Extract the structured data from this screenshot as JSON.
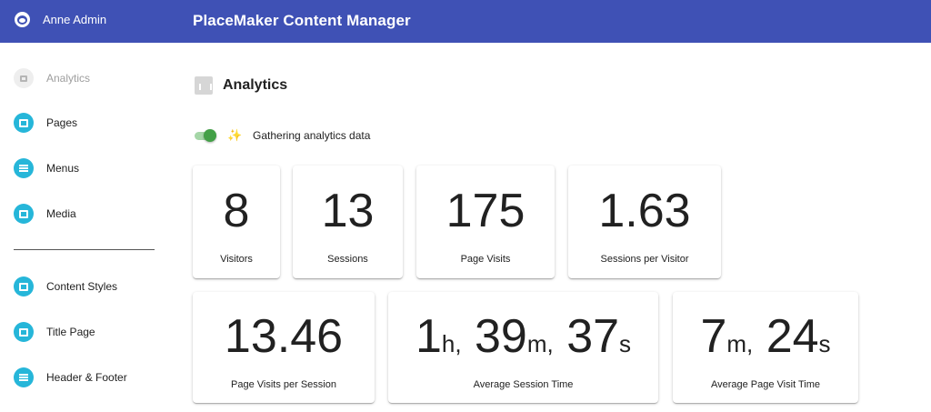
{
  "header": {
    "user_name": "Anne Admin",
    "app_title": "PlaceMaker Content Manager",
    "bar_color": "#3f51b5"
  },
  "sidebar": {
    "items": [
      {
        "label": "Analytics",
        "icon": "bar-chart-icon",
        "disabled": true
      },
      {
        "label": "Pages",
        "icon": "pages-icon"
      },
      {
        "label": "Menus",
        "icon": "menu-icon"
      },
      {
        "label": "Media",
        "icon": "media-icon"
      },
      {
        "label": "Content Styles",
        "icon": "palette-icon"
      },
      {
        "label": "Title Page",
        "icon": "phone-icon"
      },
      {
        "label": "Header & Footer",
        "icon": "header-footer-icon"
      }
    ],
    "accent_color": "#26b6d9"
  },
  "main": {
    "title": "Analytics",
    "toggle": {
      "label": "Gathering analytics data",
      "on": true
    }
  },
  "stats": {
    "visitors": {
      "value": "8",
      "label": "Visitors"
    },
    "sessions": {
      "value": "13",
      "label": "Sessions"
    },
    "page_visits": {
      "value": "175",
      "label": "Page Visits"
    },
    "sessions_per_visitor": {
      "value": "1.63",
      "label": "Sessions per Visitor"
    },
    "page_visits_per_session": {
      "value": "13.46",
      "label": "Page Visits per Session"
    },
    "avg_session_time": {
      "hours": "1",
      "hours_unit": "h,",
      "minutes": "39",
      "minutes_unit": "m,",
      "seconds": "37",
      "seconds_unit": "s",
      "label": "Average Session Time"
    },
    "avg_page_visit_time": {
      "minutes": "7",
      "minutes_unit": "m,",
      "seconds": "24",
      "seconds_unit": "s",
      "label": "Average Page Visit Time"
    }
  }
}
